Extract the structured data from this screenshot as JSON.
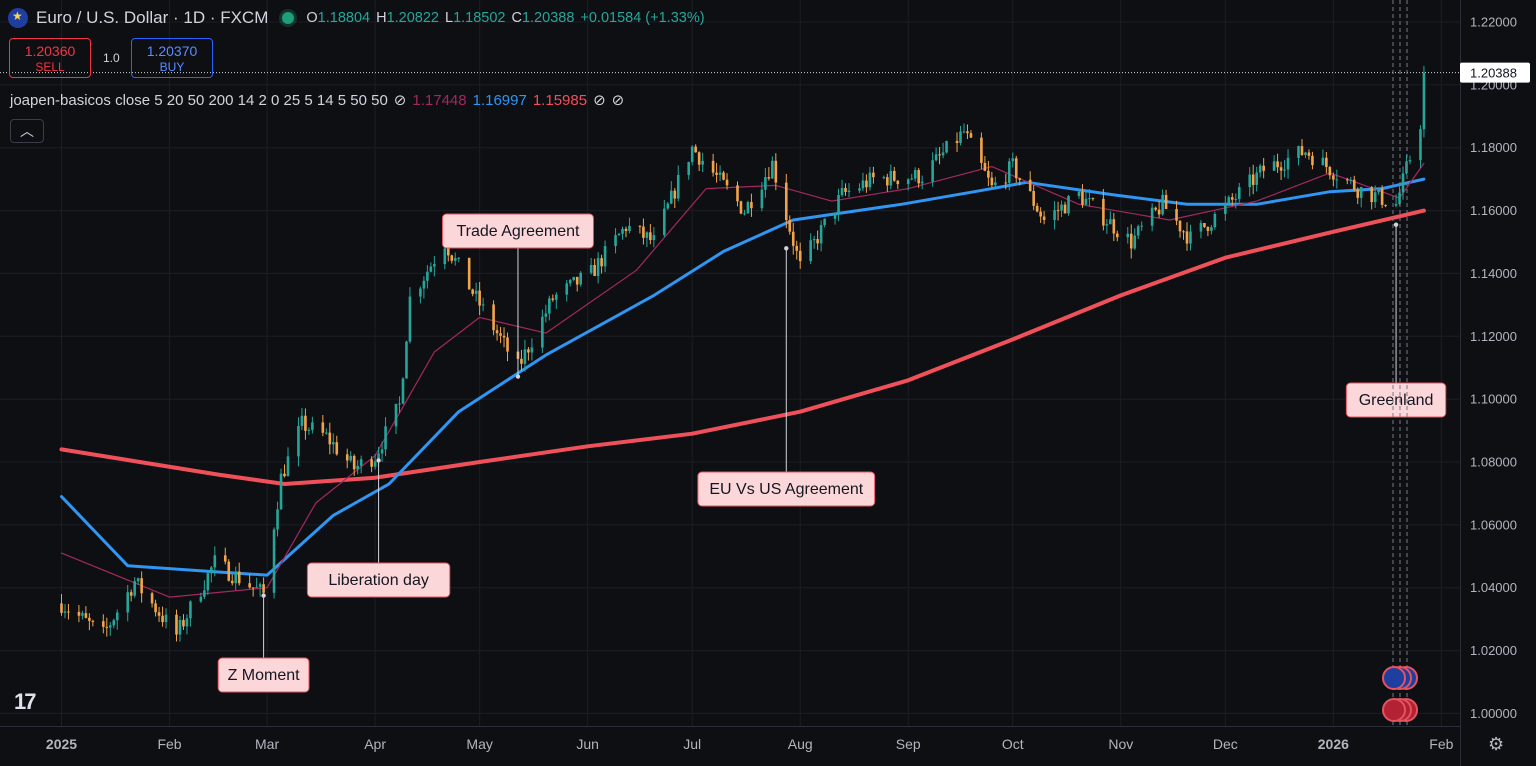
{
  "header": {
    "symbol_title": "Euro / U.S. Dollar · 1D · FXCM",
    "open_label": "O",
    "open": "1.18804",
    "high_label": "H",
    "high": "1.20822",
    "low_label": "L",
    "low": "1.18502",
    "close_label": "C",
    "close": "1.20388",
    "change": "+0.01584 (+1.33%)"
  },
  "trade": {
    "sell_price": "1.20360",
    "sell_label": "SELL",
    "quantity": "1.0",
    "buy_price": "1.20370",
    "buy_label": "BUY"
  },
  "indicator": {
    "name": "joapen-basicos close 5 20 50 200 14 2 0 25 5 14 5 50 50",
    "value_1": "1.17448",
    "value_2": "1.16997",
    "value_3": "1.15985"
  },
  "colors": {
    "up": "#26a69a",
    "down": "#f2a44b",
    "ma20": "#a3285f",
    "ma50": "#2f96f3",
    "ma200": "#f0505a",
    "background": "#0e0f13",
    "grid": "#1c1e24",
    "axis_text": "#b2b5be"
  },
  "icons": [
    "eur-flag-icon",
    "market-open-dot-icon",
    "chevron-up-icon",
    "tradingview-logo-icon",
    "settings-gear-icon",
    "blocked-icon"
  ],
  "chart_data": {
    "type": "candlestick",
    "symbol": "EURUSD",
    "ylim": [
      0.996,
      1.227
    ],
    "y_ticks": [
      1.0,
      1.02,
      1.04,
      1.06,
      1.08,
      1.1,
      1.12,
      1.14,
      1.16,
      1.18,
      1.2,
      1.22
    ],
    "y_tick_labels": [
      "1.00000",
      "1.02000",
      "1.04000",
      "1.06000",
      "1.08000",
      "1.10000",
      "1.12000",
      "1.14000",
      "1.16000",
      "1.18000",
      "1.20000",
      "1.22000"
    ],
    "x_ticks": [
      "2025",
      "Feb",
      "Mar",
      "Apr",
      "May",
      "Jun",
      "Jul",
      "Aug",
      "Sep",
      "Oct",
      "Nov",
      "Dec",
      "2026",
      "Feb"
    ],
    "last_price": 1.20388,
    "last_price_label": "1.20388",
    "close_path": [
      [
        "2025-01-01",
        1.035
      ],
      [
        "2025-01-13",
        1.025
      ],
      [
        "2025-01-22",
        1.042
      ],
      [
        "2025-02-03",
        1.025
      ],
      [
        "2025-02-14",
        1.048
      ],
      [
        "2025-02-28",
        1.038
      ],
      [
        "2025-03-05",
        1.075
      ],
      [
        "2025-03-11",
        1.092
      ],
      [
        "2025-03-18",
        1.088
      ],
      [
        "2025-03-26",
        1.078
      ],
      [
        "2025-04-01",
        1.082
      ],
      [
        "2025-04-08",
        1.098
      ],
      [
        "2025-04-11",
        1.132
      ],
      [
        "2025-04-21",
        1.15
      ],
      [
        "2025-04-30",
        1.132
      ],
      [
        "2025-05-12",
        1.11
      ],
      [
        "2025-05-22",
        1.132
      ],
      [
        "2025-06-02",
        1.14
      ],
      [
        "2025-06-12",
        1.155
      ],
      [
        "2025-06-20",
        1.15
      ],
      [
        "2025-07-01",
        1.18
      ],
      [
        "2025-07-16",
        1.16
      ],
      [
        "2025-07-24",
        1.175
      ],
      [
        "2025-08-01",
        1.142
      ],
      [
        "2025-08-13",
        1.165
      ],
      [
        "2025-08-22",
        1.17
      ],
      [
        "2025-09-05",
        1.171
      ],
      [
        "2025-09-17",
        1.185
      ],
      [
        "2025-09-25",
        1.167
      ],
      [
        "2025-10-01",
        1.174
      ],
      [
        "2025-10-10",
        1.157
      ],
      [
        "2025-10-20",
        1.165
      ],
      [
        "2025-11-04",
        1.15
      ],
      [
        "2025-11-13",
        1.162
      ],
      [
        "2025-11-21",
        1.151
      ],
      [
        "2025-12-01",
        1.161
      ],
      [
        "2025-12-12",
        1.173
      ],
      [
        "2025-12-24",
        1.179
      ],
      [
        "2026-01-08",
        1.167
      ],
      [
        "2026-01-19",
        1.162
      ],
      [
        "2026-01-22",
        1.173
      ],
      [
        "2026-01-26",
        1.188
      ],
      [
        "2026-01-27",
        1.2039
      ]
    ],
    "series": [
      {
        "name": "MA 20",
        "points": [
          [
            "2025-01-01",
            1.051
          ],
          [
            "2025-02-01",
            1.037
          ],
          [
            "2025-03-01",
            1.04
          ],
          [
            "2025-03-15",
            1.067
          ],
          [
            "2025-04-01",
            1.082
          ],
          [
            "2025-04-18",
            1.115
          ],
          [
            "2025-05-01",
            1.126
          ],
          [
            "2025-05-20",
            1.121
          ],
          [
            "2025-06-15",
            1.141
          ],
          [
            "2025-07-05",
            1.167
          ],
          [
            "2025-07-25",
            1.168
          ],
          [
            "2025-08-10",
            1.163
          ],
          [
            "2025-09-01",
            1.167
          ],
          [
            "2025-09-25",
            1.174
          ],
          [
            "2025-10-20",
            1.162
          ],
          [
            "2025-11-15",
            1.157
          ],
          [
            "2025-12-10",
            1.163
          ],
          [
            "2025-12-31",
            1.172
          ],
          [
            "2026-01-20",
            1.164
          ],
          [
            "2026-01-27",
            1.175
          ]
        ]
      },
      {
        "name": "MA 50",
        "points": [
          [
            "2025-01-01",
            1.069
          ],
          [
            "2025-01-20",
            1.047
          ],
          [
            "2025-02-15",
            1.045
          ],
          [
            "2025-03-01",
            1.044
          ],
          [
            "2025-03-20",
            1.063
          ],
          [
            "2025-04-05",
            1.073
          ],
          [
            "2025-04-25",
            1.096
          ],
          [
            "2025-05-20",
            1.114
          ],
          [
            "2025-06-20",
            1.133
          ],
          [
            "2025-07-10",
            1.147
          ],
          [
            "2025-07-30",
            1.157
          ],
          [
            "2025-08-30",
            1.162
          ],
          [
            "2025-09-20",
            1.166
          ],
          [
            "2025-10-05",
            1.169
          ],
          [
            "2025-10-30",
            1.165
          ],
          [
            "2025-11-20",
            1.162
          ],
          [
            "2025-12-10",
            1.162
          ],
          [
            "2025-12-31",
            1.166
          ],
          [
            "2026-01-15",
            1.167
          ],
          [
            "2026-01-27",
            1.17
          ]
        ]
      },
      {
        "name": "MA 200",
        "points": [
          [
            "2025-01-01",
            1.084
          ],
          [
            "2025-02-15",
            1.076
          ],
          [
            "2025-03-06",
            1.073
          ],
          [
            "2025-04-01",
            1.075
          ],
          [
            "2025-05-01",
            1.08
          ],
          [
            "2025-06-01",
            1.085
          ],
          [
            "2025-07-01",
            1.089
          ],
          [
            "2025-08-01",
            1.096
          ],
          [
            "2025-09-01",
            1.106
          ],
          [
            "2025-10-01",
            1.119
          ],
          [
            "2025-11-01",
            1.133
          ],
          [
            "2025-12-01",
            1.145
          ],
          [
            "2025-12-31",
            1.153
          ],
          [
            "2026-01-27",
            1.16
          ]
        ]
      }
    ],
    "annotations": [
      {
        "label": "Z Moment",
        "date": "2025-02-28",
        "price": 1.0375
      },
      {
        "label": "Liberation day",
        "date": "2025-04-02",
        "price": 1.0805
      },
      {
        "label": "Trade Agreement",
        "date": "2025-05-12",
        "price": 1.1072
      },
      {
        "label": "EU Vs US Agreement",
        "date": "2025-07-28",
        "price": 1.148
      },
      {
        "label": "Greenland",
        "date": "2026-01-19",
        "price": 1.1555
      }
    ]
  }
}
